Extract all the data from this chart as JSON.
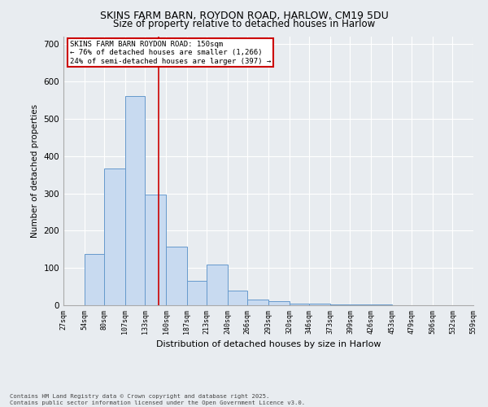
{
  "title_line1": "SKINS FARM BARN, ROYDON ROAD, HARLOW, CM19 5DU",
  "title_line2": "Size of property relative to detached houses in Harlow",
  "xlabel": "Distribution of detached houses by size in Harlow",
  "ylabel": "Number of detached properties",
  "annotation_line1": "SKINS FARM BARN ROYDON ROAD: 150sqm",
  "annotation_line2": "← 76% of detached houses are smaller (1,266)",
  "annotation_line3": "24% of semi-detached houses are larger (397) →",
  "property_size": 150,
  "bar_color": "#c8daf0",
  "bar_edge_color": "#6699cc",
  "vline_color": "#cc0000",
  "annotation_box_edge": "#cc0000",
  "bin_edges": [
    27,
    54,
    80,
    107,
    133,
    160,
    187,
    213,
    240,
    266,
    293,
    320,
    346,
    373,
    399,
    426,
    453,
    479,
    506,
    532,
    559
  ],
  "bar_heights": [
    0,
    137,
    367,
    560,
    297,
    157,
    65,
    110,
    40,
    15,
    10,
    5,
    5,
    3,
    2,
    2,
    1,
    1,
    1,
    1
  ],
  "ylim": [
    0,
    720
  ],
  "yticks": [
    0,
    100,
    200,
    300,
    400,
    500,
    600,
    700
  ],
  "footer_line1": "Contains HM Land Registry data © Crown copyright and database right 2025.",
  "footer_line2": "Contains public sector information licensed under the Open Government Licence v3.0.",
  "background_color": "#e8ecf0",
  "plot_background": "#e8ecf0"
}
